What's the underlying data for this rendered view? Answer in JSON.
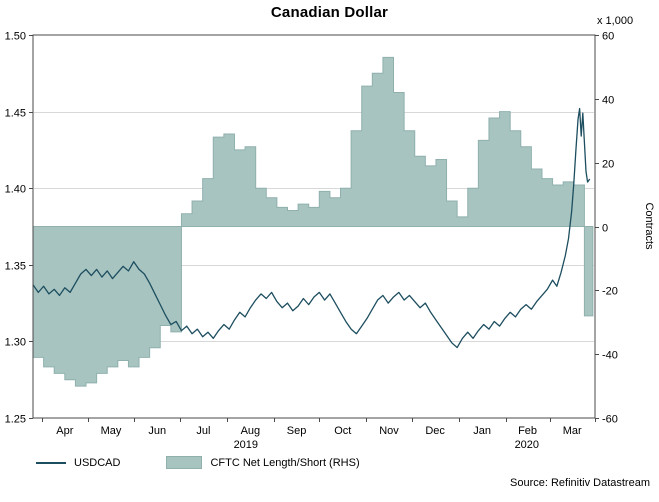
{
  "title": "Canadian Dollar",
  "source": "Source: Refinitiv Datastream",
  "legend": [
    {
      "label": "USDCAD",
      "type": "line",
      "color": "#1d4e5f"
    },
    {
      "label": "CFTC Net Length/Short (RHS)",
      "type": "area",
      "color": "#a7c4c1",
      "edge_color": "#8fb0ad"
    }
  ],
  "chart_data": {
    "type": "line+step-area",
    "title": "Canadian Dollar",
    "x_axis": {
      "month_labels": [
        "Apr",
        "May",
        "Jun",
        "Jul",
        "Aug",
        "Sep",
        "Oct",
        "Nov",
        "Dec",
        "Jan",
        "Feb",
        "Mar"
      ],
      "tick_positions_weeks": [
        0.86,
        5.14,
        9.57,
        13.86,
        18.29,
        22.71,
        27,
        31.43,
        35.71,
        40.14,
        44.57,
        48.71,
        53
      ],
      "domain_weeks": [
        0,
        53
      ],
      "years": [
        {
          "label": "2019",
          "span": [
            0,
            40.14
          ]
        },
        {
          "label": "2020",
          "span": [
            40.14,
            53
          ]
        }
      ]
    },
    "left_axis": {
      "min": 1.25,
      "max": 1.5,
      "tick_values": [
        1.25,
        1.3,
        1.35,
        1.4,
        1.45,
        1.5
      ],
      "tick_labels": [
        "1.25",
        "1.30",
        "1.35",
        "1.40",
        "1.45",
        "1.50"
      ]
    },
    "right_axis": {
      "min": -60,
      "max": 60,
      "tick_values": [
        -60,
        -40,
        -20,
        0,
        20,
        40,
        60
      ],
      "tick_labels": [
        "-60",
        "-40",
        "-20",
        "0",
        "20",
        "40",
        "60"
      ],
      "unit": "x 1,000",
      "label": "Contracts"
    },
    "gridlines": {
      "left_values": [
        1.3,
        1.35,
        1.4,
        1.45
      ],
      "color": "#d8d8d8"
    },
    "series": [
      {
        "name": "CFTC Net Length/Short (RHS)",
        "type": "step-area",
        "axis": "right",
        "color": "#a7c4c1",
        "edge_color": "#8fb0ad",
        "x_start": 0,
        "x_step": 1,
        "x_end": 52.8,
        "values": [
          -41,
          -44,
          -46,
          -48,
          -50,
          -49,
          -46,
          -44,
          -42,
          -44,
          -41,
          -38,
          -31,
          -33,
          4,
          8,
          15,
          28,
          29,
          24,
          25,
          12,
          9,
          6,
          5,
          7,
          6,
          11,
          9,
          12,
          30,
          44,
          48,
          53,
          42,
          30,
          22,
          19,
          21,
          8,
          3,
          12,
          27,
          34,
          36,
          30,
          25,
          18,
          15,
          13,
          14,
          13,
          -28
        ]
      },
      {
        "name": "USDCAD",
        "type": "line",
        "axis": "left",
        "color": "#1d4e5f",
        "points": [
          [
            0,
            1.337
          ],
          [
            0.5,
            1.332
          ],
          [
            1,
            1.336
          ],
          [
            1.5,
            1.331
          ],
          [
            2,
            1.334
          ],
          [
            2.5,
            1.33
          ],
          [
            3,
            1.335
          ],
          [
            3.5,
            1.332
          ],
          [
            4,
            1.338
          ],
          [
            4.5,
            1.344
          ],
          [
            5,
            1.347
          ],
          [
            5.5,
            1.343
          ],
          [
            6,
            1.347
          ],
          [
            6.5,
            1.342
          ],
          [
            7,
            1.346
          ],
          [
            7.5,
            1.341
          ],
          [
            8,
            1.345
          ],
          [
            8.5,
            1.349
          ],
          [
            9,
            1.346
          ],
          [
            9.5,
            1.352
          ],
          [
            10,
            1.347
          ],
          [
            10.5,
            1.344
          ],
          [
            11,
            1.338
          ],
          [
            11.5,
            1.331
          ],
          [
            12,
            1.324
          ],
          [
            12.5,
            1.317
          ],
          [
            13,
            1.311
          ],
          [
            13.5,
            1.313
          ],
          [
            14,
            1.307
          ],
          [
            14.5,
            1.31
          ],
          [
            15,
            1.305
          ],
          [
            15.5,
            1.308
          ],
          [
            16,
            1.303
          ],
          [
            16.5,
            1.306
          ],
          [
            17,
            1.302
          ],
          [
            17.5,
            1.307
          ],
          [
            18,
            1.311
          ],
          [
            18.5,
            1.308
          ],
          [
            19,
            1.314
          ],
          [
            19.5,
            1.319
          ],
          [
            20,
            1.316
          ],
          [
            20.5,
            1.322
          ],
          [
            21,
            1.327
          ],
          [
            21.5,
            1.331
          ],
          [
            22,
            1.328
          ],
          [
            22.5,
            1.332
          ],
          [
            23,
            1.326
          ],
          [
            23.5,
            1.322
          ],
          [
            24,
            1.325
          ],
          [
            24.5,
            1.32
          ],
          [
            25,
            1.323
          ],
          [
            25.5,
            1.328
          ],
          [
            26,
            1.324
          ],
          [
            26.5,
            1.329
          ],
          [
            27,
            1.332
          ],
          [
            27.5,
            1.327
          ],
          [
            28,
            1.331
          ],
          [
            28.5,
            1.325
          ],
          [
            29,
            1.319
          ],
          [
            29.5,
            1.313
          ],
          [
            30,
            1.308
          ],
          [
            30.5,
            1.305
          ],
          [
            31,
            1.31
          ],
          [
            31.5,
            1.315
          ],
          [
            32,
            1.321
          ],
          [
            32.5,
            1.327
          ],
          [
            33,
            1.33
          ],
          [
            33.5,
            1.325
          ],
          [
            34,
            1.329
          ],
          [
            34.5,
            1.332
          ],
          [
            35,
            1.327
          ],
          [
            35.5,
            1.33
          ],
          [
            36,
            1.326
          ],
          [
            36.5,
            1.322
          ],
          [
            37,
            1.325
          ],
          [
            37.5,
            1.319
          ],
          [
            38,
            1.314
          ],
          [
            38.5,
            1.309
          ],
          [
            39,
            1.304
          ],
          [
            39.5,
            1.299
          ],
          [
            40,
            1.296
          ],
          [
            40.5,
            1.302
          ],
          [
            41,
            1.306
          ],
          [
            41.5,
            1.302
          ],
          [
            42,
            1.307
          ],
          [
            42.5,
            1.311
          ],
          [
            43,
            1.308
          ],
          [
            43.5,
            1.313
          ],
          [
            44,
            1.31
          ],
          [
            44.5,
            1.315
          ],
          [
            45,
            1.319
          ],
          [
            45.5,
            1.316
          ],
          [
            46,
            1.321
          ],
          [
            46.5,
            1.324
          ],
          [
            47,
            1.321
          ],
          [
            47.5,
            1.326
          ],
          [
            48,
            1.33
          ],
          [
            48.5,
            1.334
          ],
          [
            49,
            1.34
          ],
          [
            49.4,
            1.336
          ],
          [
            49.8,
            1.345
          ],
          [
            50.2,
            1.356
          ],
          [
            50.5,
            1.367
          ],
          [
            50.8,
            1.385
          ],
          [
            51,
            1.403
          ],
          [
            51.2,
            1.425
          ],
          [
            51.4,
            1.445
          ],
          [
            51.55,
            1.452
          ],
          [
            51.7,
            1.434
          ],
          [
            51.85,
            1.449
          ],
          [
            52,
            1.43
          ],
          [
            52.15,
            1.411
          ],
          [
            52.3,
            1.404
          ],
          [
            52.5,
            1.406
          ]
        ]
      }
    ]
  }
}
